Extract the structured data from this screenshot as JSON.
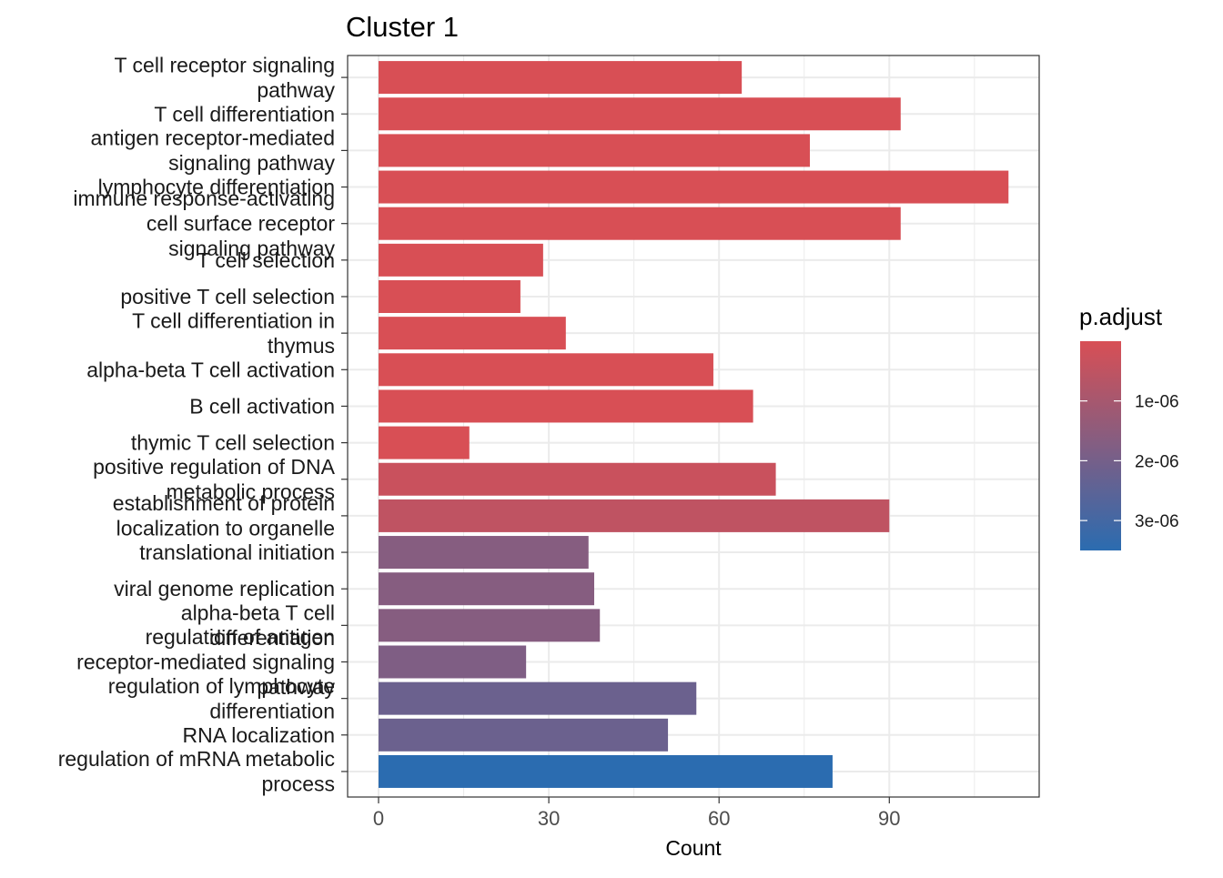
{
  "chart_data": {
    "type": "bar",
    "orientation": "horizontal",
    "title": "Cluster 1",
    "xlabel": "Count",
    "ylabel": "",
    "xlim": [
      0,
      116
    ],
    "xticks": [
      0,
      30,
      60,
      90
    ],
    "grid": true,
    "legend": {
      "title": "p.adjust",
      "placement": "right",
      "labels": [
        "1e-06",
        "2e-06",
        "3e-06"
      ],
      "label_values": [
        1e-06,
        2e-06,
        3e-06
      ],
      "range": [
        1e-09,
        3.5e-06
      ],
      "color_low": "#d84f55",
      "color_high": "#2b6cb0"
    },
    "categories": [
      "T cell receptor signaling\npathway",
      "T cell differentiation",
      "antigen receptor-mediated\nsignaling pathway",
      "lymphocyte differentiation",
      "immune response-activating\ncell surface receptor\nsignaling pathway",
      "T cell selection",
      "positive T cell selection",
      "T cell differentiation in\nthymus",
      "alpha-beta T cell activation",
      "B cell activation",
      "thymic T cell selection",
      "positive regulation of DNA\nmetabolic process",
      "establishment of protein\nlocalization to organelle",
      "translational initiation",
      "viral genome replication",
      "alpha-beta T cell\ndifferentiation",
      "regulation of antigen\nreceptor-mediated signaling\npathway",
      "regulation of lymphocyte\ndifferentiation",
      "RNA localization",
      "regulation of mRNA metabolic\nprocess"
    ],
    "values": [
      64,
      92,
      76,
      111,
      92,
      29,
      25,
      33,
      59,
      66,
      16,
      70,
      90,
      37,
      38,
      39,
      26,
      56,
      51,
      80
    ],
    "p_adjust": [
      1e-09,
      1e-09,
      1e-09,
      1e-09,
      1e-09,
      1e-09,
      1e-09,
      1e-09,
      1e-09,
      1e-09,
      1e-09,
      3e-07,
      5e-07,
      1.65e-06,
      1.65e-06,
      1.65e-06,
      1.8e-06,
      2.2e-06,
      2.2e-06,
      3.5e-06
    ]
  }
}
